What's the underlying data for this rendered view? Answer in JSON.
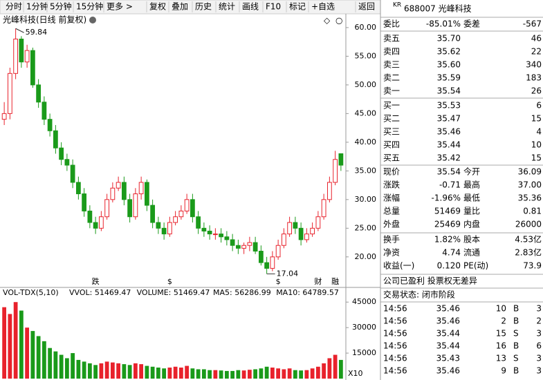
{
  "toolbar": [
    "分时",
    "1分钟",
    "5分钟",
    "15分钟",
    "更多 >",
    "复权",
    "叠加",
    "历史",
    "统计",
    "画线",
    "F10",
    "标记",
    "+自选",
    "返回"
  ],
  "chart_data": [
    {
      "type": "candlestick",
      "title": "光峰科技(日线 前复权)",
      "up_color": "#e8222c",
      "down_color": "#1a9a1a",
      "ylim": [
        16,
        62.4
      ],
      "yticks": [
        {
          "value": 60,
          "label": "60.00"
        },
        {
          "value": 55,
          "label": "55.00"
        },
        {
          "value": 50,
          "label": "50.00"
        },
        {
          "value": 45,
          "label": "45.00"
        },
        {
          "value": 40,
          "label": "40.00"
        },
        {
          "value": 35,
          "label": "35.00"
        },
        {
          "value": 30,
          "label": "30.00"
        },
        {
          "value": 25,
          "label": "25.00"
        },
        {
          "value": 20,
          "label": "20.00"
        }
      ],
      "annotations": [
        {
          "text": "59.84",
          "value": 59.84,
          "index": 2
        },
        {
          "text": "17.04",
          "value": 17.04,
          "index": 46
        }
      ],
      "markers": [
        {
          "text": "跌",
          "index": 16,
          "color": "#1a9a1a"
        },
        {
          "text": "$",
          "index": 29,
          "color": "#e8222c"
        },
        {
          "text": "$",
          "index": 48,
          "color": "#e8222c"
        },
        {
          "text": "财",
          "index": 55,
          "color": "#1f4fbf"
        },
        {
          "text": "融",
          "index": 58,
          "color": "#1a9a1a"
        }
      ],
      "series": [
        {
          "name": "日线",
          "open": [
            44,
            45,
            52,
            58,
            54,
            56,
            50,
            47,
            44,
            42,
            39,
            37,
            36,
            33,
            31,
            28,
            26,
            25,
            27,
            30,
            32,
            33,
            30,
            27,
            31,
            33,
            29,
            26,
            25,
            24,
            26,
            27,
            28,
            30,
            27,
            25,
            24.5,
            24,
            24,
            23.5,
            23,
            22,
            21.5,
            22,
            22.5,
            21,
            19,
            18,
            20,
            22,
            24,
            26,
            25,
            23,
            24,
            25,
            27,
            30,
            33,
            38
          ],
          "high": [
            47,
            53,
            59.84,
            58.5,
            57,
            56.5,
            51,
            48,
            45,
            43,
            40,
            38,
            37,
            34,
            32,
            29,
            27,
            28,
            31,
            33,
            34,
            34,
            31,
            32,
            34,
            33.5,
            30,
            27,
            26,
            27,
            28,
            29,
            31,
            31,
            28,
            26,
            25.5,
            25,
            25,
            24.5,
            24,
            23,
            22.5,
            23.5,
            23.5,
            22,
            20,
            21,
            23,
            25,
            27,
            27,
            26,
            25,
            26,
            28,
            31,
            34,
            38.5,
            38
          ],
          "low": [
            43,
            44,
            51,
            53,
            53,
            49.5,
            46,
            43,
            41,
            38,
            36,
            35,
            32,
            30,
            27,
            25,
            24,
            24.5,
            26.5,
            29.5,
            31.5,
            29,
            26,
            26.5,
            30,
            28,
            25,
            24,
            23,
            23.5,
            25.5,
            26.5,
            27.5,
            26,
            24,
            23.5,
            23,
            23,
            22.5,
            22,
            21,
            20.5,
            20.5,
            21,
            20.5,
            18.5,
            17.04,
            17.5,
            19.5,
            21.5,
            23.5,
            24,
            22,
            22.5,
            23.5,
            24.5,
            26.5,
            29.5,
            32.5,
            35
          ],
          "close": [
            45,
            52,
            58,
            54,
            56,
            50,
            47,
            44,
            42,
            39,
            37,
            36,
            33,
            31,
            28,
            26,
            25,
            27,
            30,
            32,
            33,
            30,
            27,
            31,
            33,
            29,
            26,
            25,
            24,
            26,
            27,
            28,
            30,
            27,
            25,
            24.5,
            24,
            24,
            23.5,
            23,
            22,
            21.5,
            22,
            22.5,
            21,
            19,
            18,
            20,
            22,
            24,
            26,
            25,
            23,
            24,
            25,
            27,
            30,
            33,
            37,
            36
          ]
        }
      ]
    },
    {
      "type": "bar",
      "title": "VOL-TDX(5,10)",
      "legend": [
        {
          "text": "VVOL: 51469.47",
          "color": "#000"
        },
        {
          "text": "VOLUME: 51469.47",
          "color": "#1f4fbf"
        },
        {
          "text": "MA5: 56286.99",
          "color": "#1f4fbf"
        },
        {
          "text": "MA10: 64789.57",
          "color": "#b0208a"
        }
      ],
      "ylim": [
        0,
        52000
      ],
      "yticks": [
        45000,
        30000,
        15000
      ],
      "unit": "X10",
      "values": [
        42000,
        38000,
        45000,
        40000,
        30000,
        28000,
        25000,
        22000,
        18000,
        16000,
        14000,
        12000,
        15000,
        11000,
        10000,
        9000,
        8000,
        9000,
        10000,
        9500,
        9000,
        8500,
        8000,
        9000,
        8500,
        7500,
        7000,
        6500,
        6000,
        6500,
        7000,
        6500,
        7500,
        6000,
        5500,
        5500,
        5000,
        5000,
        4800,
        4500,
        4500,
        5000,
        4800,
        5200,
        5500,
        6000,
        7000,
        6500,
        6000,
        5500,
        6000,
        5000,
        4800,
        5000,
        6000,
        7000,
        9000,
        12000,
        14000,
        11000
      ]
    }
  ],
  "quote": {
    "tag": "KR",
    "title": "688007 光峰科技",
    "ratio_label": "委比",
    "ratio": "-85.01%",
    "diff_label": "委差",
    "diff": "-567",
    "asks": [
      {
        "label": "卖五",
        "price": "35.70",
        "volume": "46"
      },
      {
        "label": "卖四",
        "price": "35.62",
        "volume": "22"
      },
      {
        "label": "卖三",
        "price": "35.60",
        "volume": "340"
      },
      {
        "label": "卖二",
        "price": "35.59",
        "volume": "183"
      },
      {
        "label": "卖一",
        "price": "35.54",
        "volume": "26"
      }
    ],
    "bids": [
      {
        "label": "买一",
        "price": "35.53",
        "volume": "6"
      },
      {
        "label": "买二",
        "price": "35.47",
        "volume": "15"
      },
      {
        "label": "买三",
        "price": "35.46",
        "volume": "4"
      },
      {
        "label": "买四",
        "price": "35.44",
        "volume": "10"
      },
      {
        "label": "买五",
        "price": "35.42",
        "volume": "15"
      }
    ],
    "stats": [
      [
        {
          "label": "现价",
          "value": "35.54",
          "color": "green"
        },
        {
          "label": "今开",
          "value": "36.09",
          "color": "green"
        }
      ],
      [
        {
          "label": "涨跌",
          "value": "-0.71",
          "color": "green"
        },
        {
          "label": "最高",
          "value": "37.00",
          "color": "red"
        }
      ],
      [
        {
          "label": "涨幅",
          "value": "-1.96%",
          "color": "green"
        },
        {
          "label": "最低",
          "value": "35.36",
          "color": "green"
        }
      ],
      [
        {
          "label": "总量",
          "value": "51469",
          "color": "black"
        },
        {
          "label": "量比",
          "value": "0.81",
          "color": "green"
        }
      ],
      [
        {
          "label": "外盘",
          "value": "25469",
          "color": "red"
        },
        {
          "label": "内盘",
          "value": "26000",
          "color": "green"
        }
      ]
    ],
    "finance": [
      [
        {
          "label": "换手",
          "value": "1.82%"
        },
        {
          "label": "股本",
          "value": "4.53亿"
        }
      ],
      [
        {
          "label": "净资",
          "value": "4.74"
        },
        {
          "label": "流通",
          "value": "2.83亿"
        }
      ],
      [
        {
          "label": "收益(一)",
          "value": "0.120"
        },
        {
          "label": "PE(动)",
          "value": "73.9"
        }
      ]
    ],
    "note": "公司已盈利 投票权无差异",
    "status": "交易状态: 闭市阶段",
    "trades": [
      {
        "time": "14:56",
        "price": "35.46",
        "volume": "10",
        "side": "B",
        "count": "3"
      },
      {
        "time": "14:56",
        "price": "35.46",
        "volume": "2",
        "side": "B",
        "count": "2"
      },
      {
        "time": "14:56",
        "price": "35.44",
        "volume": "15",
        "side": "S",
        "count": "3"
      },
      {
        "time": "14:56",
        "price": "35.44",
        "volume": "16",
        "side": "B",
        "count": "6"
      },
      {
        "time": "14:56",
        "price": "35.43",
        "volume": "13",
        "side": "S",
        "count": "3"
      },
      {
        "time": "14:56",
        "price": "35.46",
        "volume": "9",
        "side": "B",
        "count": "3"
      }
    ]
  }
}
